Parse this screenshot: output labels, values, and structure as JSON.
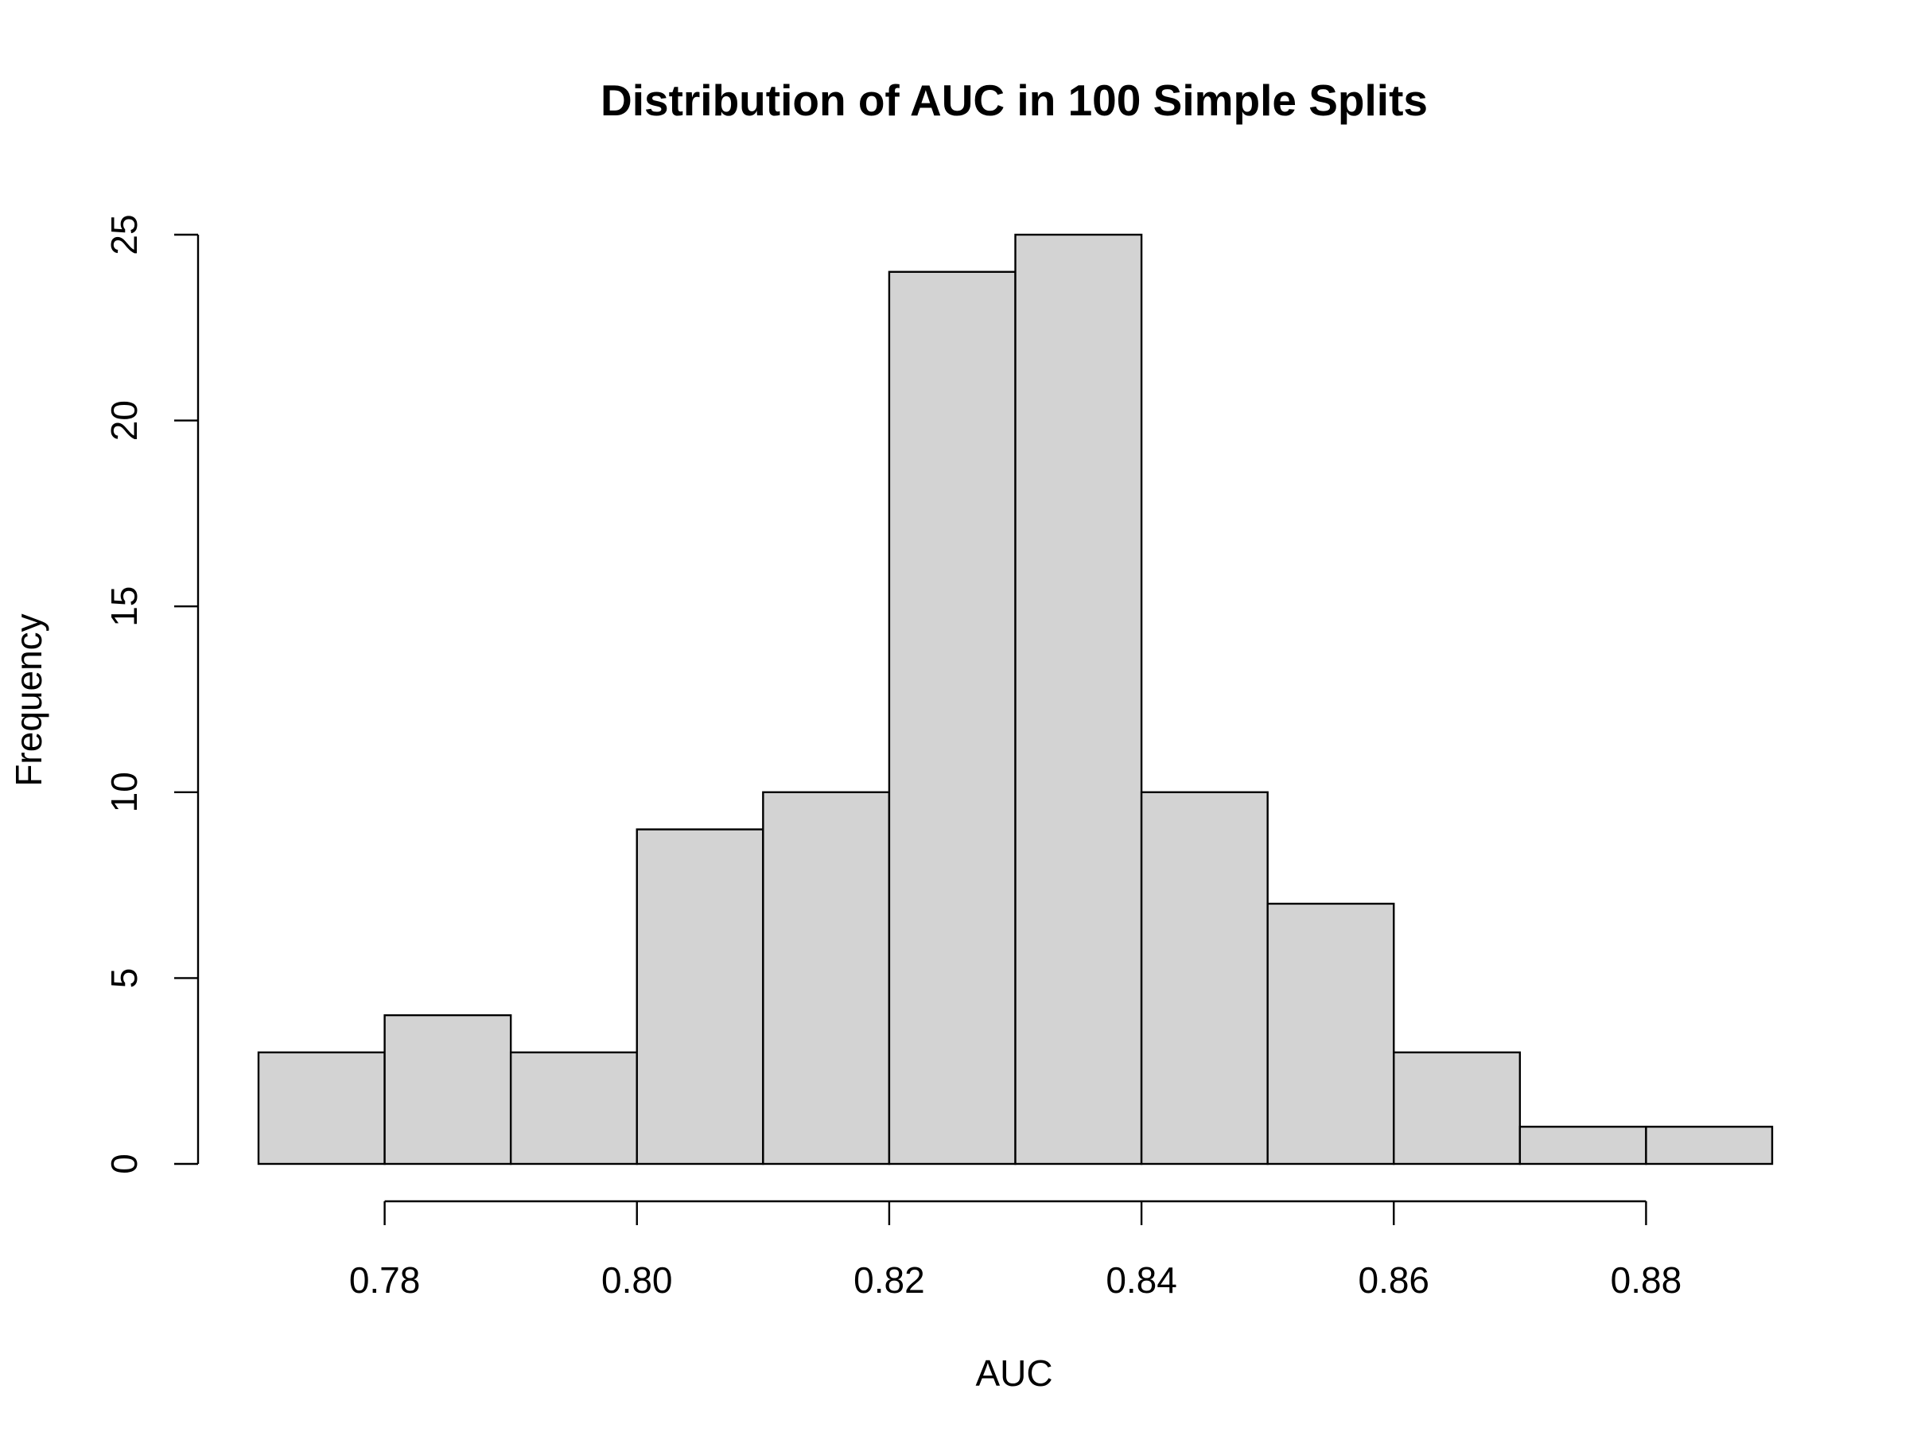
{
  "chart_data": {
    "type": "bar",
    "title": "Distribution of AUC in 100 Simple Splits",
    "xlabel": "AUC",
    "ylabel": "Frequency",
    "bins": [
      {
        "x0": 0.77,
        "x1": 0.78,
        "count": 3
      },
      {
        "x0": 0.78,
        "x1": 0.79,
        "count": 4
      },
      {
        "x0": 0.79,
        "x1": 0.8,
        "count": 3
      },
      {
        "x0": 0.8,
        "x1": 0.81,
        "count": 9
      },
      {
        "x0": 0.81,
        "x1": 0.82,
        "count": 10
      },
      {
        "x0": 0.82,
        "x1": 0.83,
        "count": 24
      },
      {
        "x0": 0.83,
        "x1": 0.84,
        "count": 25
      },
      {
        "x0": 0.84,
        "x1": 0.85,
        "count": 10
      },
      {
        "x0": 0.85,
        "x1": 0.86,
        "count": 7
      },
      {
        "x0": 0.86,
        "x1": 0.87,
        "count": 3
      },
      {
        "x0": 0.87,
        "x1": 0.88,
        "count": 1
      },
      {
        "x0": 0.88,
        "x1": 0.89,
        "count": 1
      }
    ],
    "xlim": [
      0.77,
      0.89
    ],
    "ylim": [
      0,
      25
    ],
    "x_ticks": [
      0.78,
      0.8,
      0.82,
      0.84,
      0.86,
      0.88
    ],
    "x_tick_labels": [
      "0.78",
      "0.80",
      "0.82",
      "0.84",
      "0.86",
      "0.88"
    ],
    "y_ticks": [
      0,
      5,
      10,
      15,
      20,
      25
    ],
    "y_tick_labels": [
      "0",
      "5",
      "10",
      "15",
      "20",
      "25"
    ],
    "bar_fill": "#d3d3d3",
    "bar_stroke": "#000000",
    "grid": false,
    "legend": "none"
  }
}
